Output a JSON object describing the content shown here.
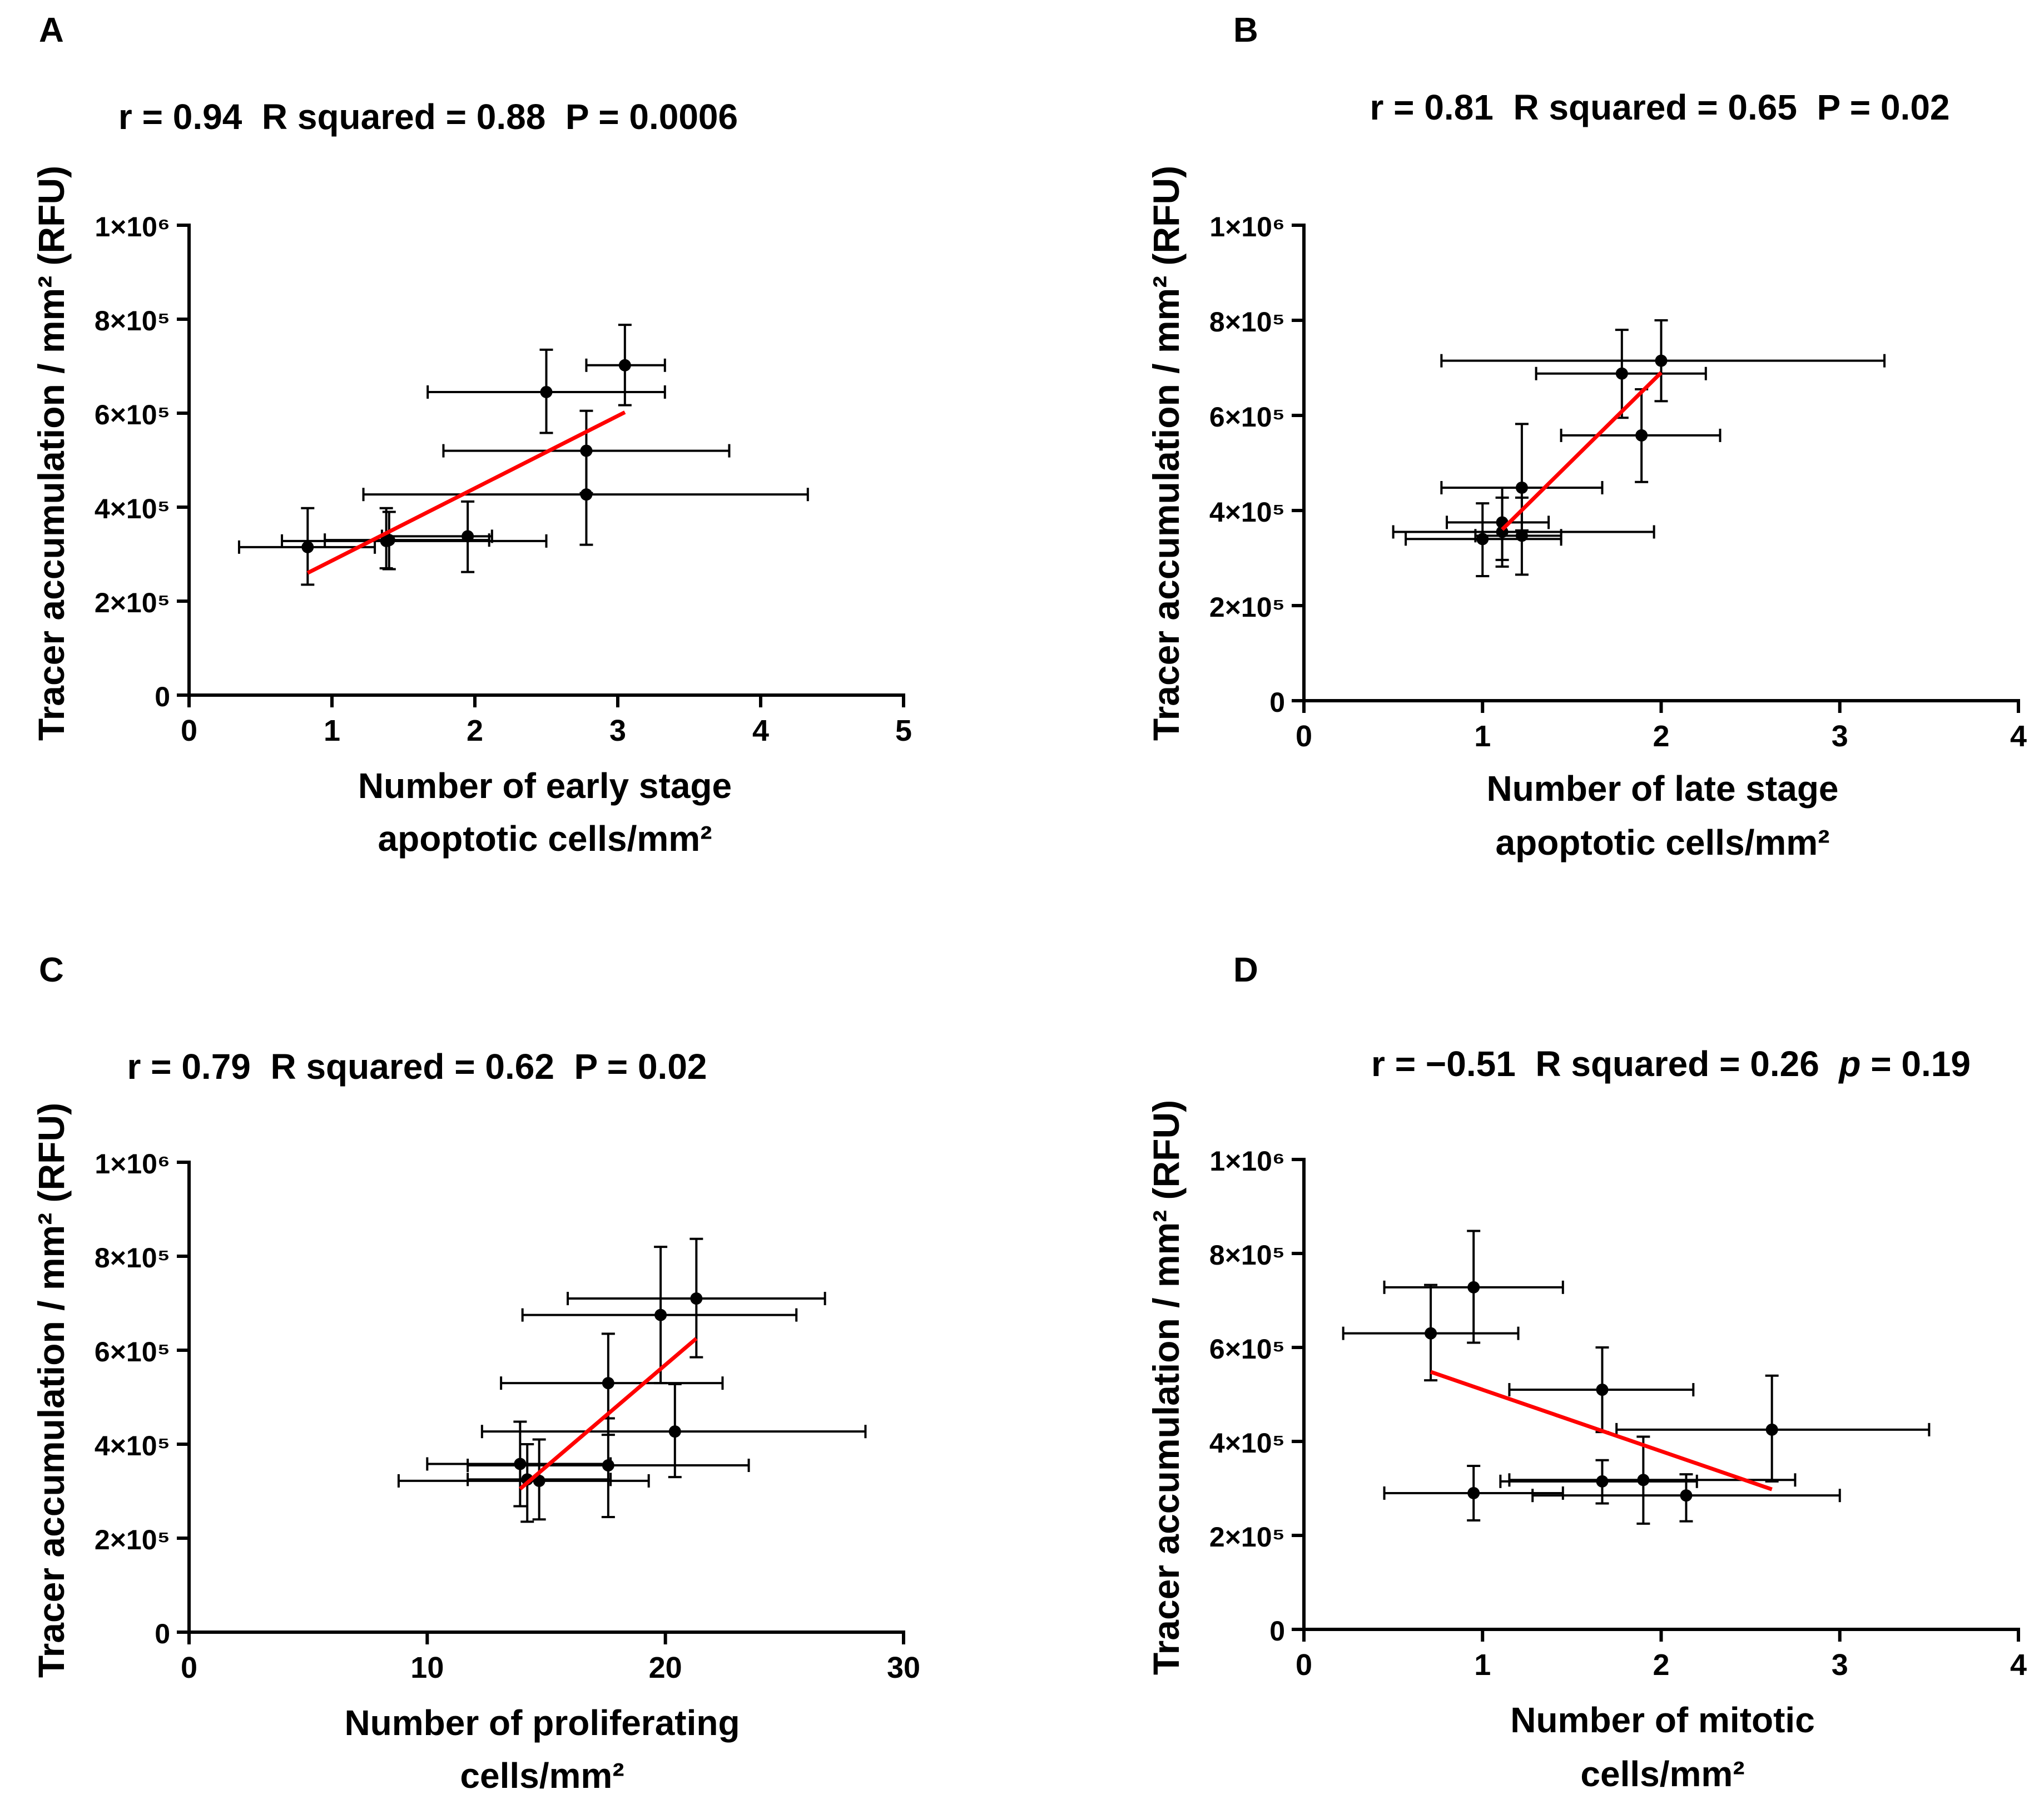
{
  "panels": [
    {
      "letter": "A",
      "stats": "r = 0.94  R squared = 0.88  P = 0.0006",
      "ylabel": "Tracer accumulation / mm² (RFU)",
      "xlabel_line1": "Number of early stage",
      "xlabel_line2": "apoptotic cells/mm²",
      "xticks": [
        "0",
        "1",
        "2",
        "3",
        "4",
        "5"
      ],
      "yticks": [
        "0",
        "2×10⁵",
        "4×10⁵",
        "6×10⁵",
        "8×10⁵",
        "1×10⁶"
      ]
    },
    {
      "letter": "B",
      "stats": "r = 0.81  R squared = 0.65  P = 0.02",
      "ylabel": "Tracer accumulation / mm² (RFU)",
      "xlabel_line1": "Number of late stage",
      "xlabel_line2": "apoptotic cells/mm²",
      "xticks": [
        "0",
        "1",
        "2",
        "3",
        "4"
      ],
      "yticks": [
        "0",
        "2×10⁵",
        "4×10⁵",
        "6×10⁵",
        "8×10⁵",
        "1×10⁶"
      ]
    },
    {
      "letter": "C",
      "stats": "r = 0.79  R squared = 0.62  P = 0.02",
      "ylabel": "Tracer accumulation / mm² (RFU)",
      "xlabel_line1": "Number of proliferating",
      "xlabel_line2": "cells/mm²",
      "xticks": [
        "0",
        "10",
        "20",
        "30"
      ],
      "yticks": [
        "0",
        "2×10⁵",
        "4×10⁵",
        "6×10⁵",
        "8×10⁵",
        "1×10⁶"
      ]
    },
    {
      "letter": "D",
      "stats_prefix": "r = −0.51  R squared = 0.26  ",
      "stats_p": "p",
      "stats_suffix": " = 0.19",
      "ylabel": "Tracer accumulation / mm² (RFU)",
      "xlabel_line1": "Number of mitotic",
      "xlabel_line2": "cells/mm²",
      "xticks": [
        "0",
        "1",
        "2",
        "3",
        "4"
      ],
      "yticks": [
        "0",
        "2×10⁵",
        "4×10⁵",
        "6×10⁵",
        "8×10⁵",
        "1×10⁶"
      ]
    }
  ],
  "chart_data": [
    {
      "type": "scatter",
      "title": "r = 0.94  R squared = 0.88  P = 0.0006",
      "xlabel": "Number of early stage apoptotic cells/mm²",
      "ylabel": "Tracer accumulation / mm² (RFU)",
      "xlim": [
        0,
        5
      ],
      "ylim": [
        0,
        1000000
      ],
      "points": [
        {
          "x": 0.83,
          "y": 315000,
          "xerr": [
            0.35,
            1.3
          ],
          "yerr": [
            235000,
            398000
          ]
        },
        {
          "x": 1.38,
          "y": 328000,
          "xerr": [
            0.65,
            2.5
          ],
          "yerr": [
            270000,
            398000
          ]
        },
        {
          "x": 1.4,
          "y": 330000,
          "xerr": [
            0.95,
            2.1
          ],
          "yerr": [
            268000,
            390000
          ]
        },
        {
          "x": 1.95,
          "y": 338000,
          "xerr": [
            1.35,
            2.12
          ],
          "yerr": [
            262000,
            412000
          ]
        },
        {
          "x": 2.5,
          "y": 645000,
          "xerr": [
            1.67,
            3.33
          ],
          "yerr": [
            558000,
            735000
          ]
        },
        {
          "x": 2.78,
          "y": 520000,
          "xerr": [
            1.78,
            3.78
          ],
          "yerr": [
            430000,
            605000
          ]
        },
        {
          "x": 2.78,
          "y": 427000,
          "xerr": [
            1.22,
            4.33
          ],
          "yerr": [
            320000,
            520000
          ]
        },
        {
          "x": 3.05,
          "y": 702000,
          "xerr": [
            2.78,
            3.33
          ],
          "yerr": [
            617000,
            788000
          ]
        }
      ],
      "fit_line": {
        "x": [
          0.83,
          3.05
        ],
        "y": [
          260000,
          602000
        ],
        "color": "#ff0000"
      },
      "point_color": "#000000",
      "grid": false
    },
    {
      "type": "scatter",
      "title": "r = 0.81  R squared = 0.65  P = 0.02",
      "xlabel": "Number of late stage apoptotic cells/mm²",
      "ylabel": "Tracer accumulation / mm² (RFU)",
      "xlim": [
        0,
        4
      ],
      "ylim": [
        0,
        1000000
      ],
      "points": [
        {
          "x": 1.0,
          "y": 340000,
          "xerr": [
            0.57,
            1.44
          ],
          "yerr": [
            262000,
            415000
          ]
        },
        {
          "x": 1.11,
          "y": 355000,
          "xerr": [
            0.5,
            1.96
          ],
          "yerr": [
            282000,
            427000
          ]
        },
        {
          "x": 1.11,
          "y": 375000,
          "xerr": [
            0.8,
            1.37
          ],
          "yerr": [
            296000,
            448000
          ]
        },
        {
          "x": 1.22,
          "y": 347000,
          "xerr": [
            0.96,
            1.44
          ],
          "yerr": [
            265000,
            427000
          ]
        },
        {
          "x": 1.22,
          "y": 448000,
          "xerr": [
            0.77,
            1.67
          ],
          "yerr": [
            358000,
            582000
          ]
        },
        {
          "x": 1.89,
          "y": 558000,
          "xerr": [
            1.44,
            2.33
          ],
          "yerr": [
            460000,
            655000
          ]
        },
        {
          "x": 1.78,
          "y": 688000,
          "xerr": [
            1.3,
            2.25
          ],
          "yerr": [
            595000,
            780000
          ]
        },
        {
          "x": 2.0,
          "y": 715000,
          "xerr": [
            0.77,
            3.25
          ],
          "yerr": [
            630000,
            800000
          ]
        }
      ],
      "fit_line": {
        "x": [
          1.11,
          2.0
        ],
        "y": [
          360000,
          690000
        ],
        "color": "#ff0000"
      },
      "point_color": "#000000",
      "grid": false
    },
    {
      "type": "scatter",
      "title": "r = 0.79  R squared = 0.62  P = 0.02",
      "xlabel": "Number of proliferating cells/mm²",
      "ylabel": "Tracer accumulation / mm² (RFU)",
      "xlim": [
        0,
        30
      ],
      "ylim": [
        0,
        1000000
      ],
      "points": [
        {
          "x": 13.9,
          "y": 358000,
          "xerr": [
            10.0,
            17.7
          ],
          "yerr": [
            268000,
            448000
          ]
        },
        {
          "x": 14.2,
          "y": 325000,
          "xerr": [
            11.7,
            17.7
          ],
          "yerr": [
            235000,
            400000
          ]
        },
        {
          "x": 14.7,
          "y": 322000,
          "xerr": [
            8.8,
            19.3
          ],
          "yerr": [
            240000,
            410000
          ]
        },
        {
          "x": 17.6,
          "y": 355000,
          "xerr": [
            11.7,
            23.5
          ],
          "yerr": [
            245000,
            455000
          ]
        },
        {
          "x": 17.6,
          "y": 530000,
          "xerr": [
            13.1,
            22.4
          ],
          "yerr": [
            420000,
            635000
          ]
        },
        {
          "x": 20.4,
          "y": 427000,
          "xerr": [
            12.3,
            28.4
          ],
          "yerr": [
            330000,
            528000
          ]
        },
        {
          "x": 19.8,
          "y": 675000,
          "xerr": [
            14.0,
            25.5
          ],
          "yerr": [
            530000,
            820000
          ]
        },
        {
          "x": 21.3,
          "y": 710000,
          "xerr": [
            15.9,
            26.7
          ],
          "yerr": [
            585000,
            837000
          ]
        }
      ],
      "fit_line": {
        "x": [
          13.9,
          21.3
        ],
        "y": [
          305000,
          625000
        ],
        "color": "#ff0000"
      },
      "point_color": "#000000",
      "grid": false
    },
    {
      "type": "scatter",
      "title": "r = −0.51  R squared = 0.26  p = 0.19",
      "xlabel": "Number of mitotic cells/mm²",
      "ylabel": "Tracer accumulation / mm² (RFU)",
      "xlim": [
        0,
        4
      ],
      "ylim": [
        0,
        1000000
      ],
      "points": [
        {
          "x": 0.71,
          "y": 630000,
          "xerr": [
            0.22,
            1.2
          ],
          "yerr": [
            530000,
            733000
          ]
        },
        {
          "x": 0.95,
          "y": 728000,
          "xerr": [
            0.45,
            1.45
          ],
          "yerr": [
            610000,
            848000
          ]
        },
        {
          "x": 0.95,
          "y": 290000,
          "xerr": [
            0.45,
            1.45
          ],
          "yerr": [
            232000,
            348000
          ]
        },
        {
          "x": 1.67,
          "y": 510000,
          "xerr": [
            1.15,
            2.18
          ],
          "yerr": [
            420000,
            600000
          ]
        },
        {
          "x": 1.67,
          "y": 315000,
          "xerr": [
            1.1,
            2.2
          ],
          "yerr": [
            268000,
            360000
          ]
        },
        {
          "x": 1.9,
          "y": 318000,
          "xerr": [
            1.15,
            2.75
          ],
          "yerr": [
            225000,
            410000
          ]
        },
        {
          "x": 2.14,
          "y": 285000,
          "xerr": [
            1.28,
            3.0
          ],
          "yerr": [
            230000,
            330000
          ]
        },
        {
          "x": 2.62,
          "y": 425000,
          "xerr": [
            1.75,
            3.5
          ],
          "yerr": [
            315000,
            540000
          ]
        }
      ],
      "fit_line": {
        "x": [
          0.71,
          2.62
        ],
        "y": [
          548000,
          298000
        ],
        "color": "#ff0000"
      },
      "point_color": "#000000",
      "grid": false
    }
  ]
}
